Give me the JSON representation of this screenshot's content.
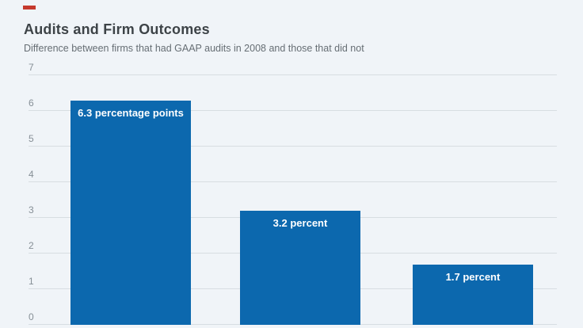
{
  "page": {
    "background_color": "#f0f4f8",
    "accent_dash_color": "#c5392d"
  },
  "header": {
    "title": "Audits and Firm Outcomes",
    "subtitle": "Difference between firms that had GAAP audits in 2008 and those that did not"
  },
  "chart_data": {
    "type": "bar",
    "title": "Audits and Firm Outcomes",
    "subtitle": "Difference between firms that had GAAP audits in 2008 and those that did not",
    "values": [
      6.3,
      3.2,
      1.7
    ],
    "bar_labels": [
      "6.3 percentage points",
      "3.2 percent",
      "1.7 percent"
    ],
    "ylim": [
      0,
      7
    ],
    "yticks": [
      0,
      1,
      2,
      3,
      4,
      5,
      6,
      7
    ],
    "grid": true,
    "legend": "none",
    "x_axis_labels_visible": false,
    "bar_color": "#0c68ae",
    "bar_label_color": "#ffffff",
    "gridline_color": "#d7dde2",
    "tick_label_color": "#868f96"
  }
}
